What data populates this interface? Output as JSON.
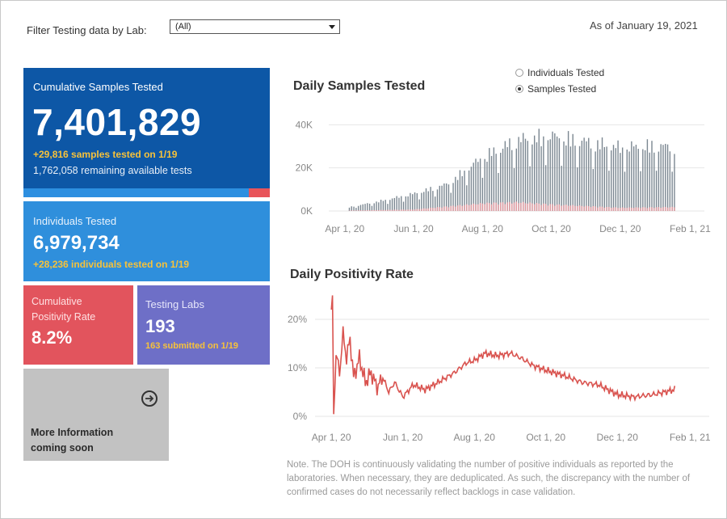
{
  "filter": {
    "label": "Filter Testing data by Lab:",
    "value": "(All)"
  },
  "as_of": "As of January 19, 2021",
  "cumulative_samples": {
    "title": "Cumulative Samples Tested",
    "value": "7,401,829",
    "delta": "+29,816 samples tested on 1/19",
    "remaining": "1,762,058 remaining available tests",
    "bar_fraction": 0.915
  },
  "individuals": {
    "title": "Individuals Tested",
    "value": "6,979,734",
    "delta": "+28,236  individuals  tested on 1/19"
  },
  "positivity": {
    "title_line1": "Cumulative",
    "title_line2": "Positivity Rate",
    "value": "8.2%"
  },
  "labs": {
    "title": "Testing Labs",
    "value": "193",
    "delta": "163 submitted on 1/19"
  },
  "more_info": {
    "line1": "More Information",
    "line2": "coming soon"
  },
  "toggle": {
    "option1": "Individuals Tested",
    "option2": "Samples Tested",
    "selected": "Samples Tested"
  },
  "note": "Note. The DOH is continuously validating the number of positive individuals as reported by the laboratories. When necessary, they are deduplicated. As such, the discrepancy with the number of confirmed cases do not necessarily reflect backlogs in case validation.",
  "colors": {
    "blue_dark": "#0d57a6",
    "blue": "#2f8fdc",
    "red": "#e2545d",
    "purple": "#6e6fc7",
    "grey": "#c2c2c2",
    "gold": "#f7c23a",
    "bar_grey": "#7b8791",
    "line_red": "#d9534f"
  },
  "chart_data": [
    {
      "type": "bar",
      "title": "Daily Samples Tested",
      "x_ticks": [
        "Apr 1, 20",
        "Jun 1, 20",
        "Aug 1, 20",
        "Oct 1, 20",
        "Dec 1, 20",
        "Feb 1, 21"
      ],
      "y_ticks": [
        "0K",
        "20K",
        "40K"
      ],
      "ylim": [
        0,
        45000
      ],
      "x_range": [
        "2020-03-25",
        "2021-02-05"
      ],
      "series": [
        {
          "name": "Samples Tested",
          "date_range": [
            "2020-04-05",
            "2021-01-19"
          ],
          "anchors": [
            [
              "2020-04-05",
              2000
            ],
            [
              "2020-05-01",
              5000
            ],
            [
              "2020-06-01",
              9000
            ],
            [
              "2020-07-01",
              14000
            ],
            [
              "2020-08-01",
              28000
            ],
            [
              "2020-09-01",
              37000
            ],
            [
              "2020-10-01",
              39000
            ],
            [
              "2020-11-01",
              36000
            ],
            [
              "2020-12-01",
              33000
            ],
            [
              "2021-01-01",
              34000
            ],
            [
              "2021-01-19",
              33000
            ]
          ]
        },
        {
          "name": "Positive",
          "date_range": [
            "2020-04-05",
            "2021-01-19"
          ],
          "anchors": [
            [
              "2020-04-05",
              200
            ],
            [
              "2020-06-01",
              700
            ],
            [
              "2020-08-01",
              3500
            ],
            [
              "2020-09-01",
              4000
            ],
            [
              "2020-10-01",
              3000
            ],
            [
              "2020-12-01",
              1500
            ],
            [
              "2021-01-19",
              1800
            ]
          ]
        }
      ]
    },
    {
      "type": "line",
      "title": "Daily Positivity Rate",
      "x_ticks": [
        "Apr 1, 20",
        "Jun 1, 20",
        "Aug 1, 20",
        "Oct 1, 20",
        "Dec 1, 20",
        "Feb 1, 21"
      ],
      "y_ticks": [
        "0%",
        "10%",
        "20%"
      ],
      "ylim": [
        0,
        0.25
      ],
      "x_range": [
        "2020-03-25",
        "2021-02-05"
      ],
      "series": [
        {
          "name": "Positivity Rate",
          "values": [
            [
              "2020-04-01",
              0.22
            ],
            [
              "2020-04-02",
              0.24
            ],
            [
              "2020-04-03",
              0.0
            ],
            [
              "2020-04-05",
              0.13
            ],
            [
              "2020-04-08",
              0.09
            ],
            [
              "2020-04-11",
              0.17
            ],
            [
              "2020-04-14",
              0.12
            ],
            [
              "2020-04-17",
              0.16
            ],
            [
              "2020-04-20",
              0.08
            ],
            [
              "2020-04-25",
              0.12
            ],
            [
              "2020-04-30",
              0.07
            ],
            [
              "2020-05-05",
              0.09
            ],
            [
              "2020-05-10",
              0.06
            ],
            [
              "2020-05-15",
              0.08
            ],
            [
              "2020-05-20",
              0.05
            ],
            [
              "2020-05-25",
              0.07
            ],
            [
              "2020-06-01",
              0.04
            ],
            [
              "2020-06-10",
              0.065
            ],
            [
              "2020-06-20",
              0.055
            ],
            [
              "2020-07-01",
              0.07
            ],
            [
              "2020-07-15",
              0.09
            ],
            [
              "2020-07-25",
              0.11
            ],
            [
              "2020-08-01",
              0.115
            ],
            [
              "2020-08-10",
              0.13
            ],
            [
              "2020-08-20",
              0.125
            ],
            [
              "2020-09-01",
              0.13
            ],
            [
              "2020-09-10",
              0.12
            ],
            [
              "2020-09-20",
              0.105
            ],
            [
              "2020-10-01",
              0.095
            ],
            [
              "2020-10-15",
              0.085
            ],
            [
              "2020-11-01",
              0.07
            ],
            [
              "2020-11-15",
              0.065
            ],
            [
              "2020-12-01",
              0.045
            ],
            [
              "2020-12-15",
              0.04
            ],
            [
              "2021-01-01",
              0.045
            ],
            [
              "2021-01-19",
              0.055
            ]
          ]
        }
      ]
    }
  ]
}
